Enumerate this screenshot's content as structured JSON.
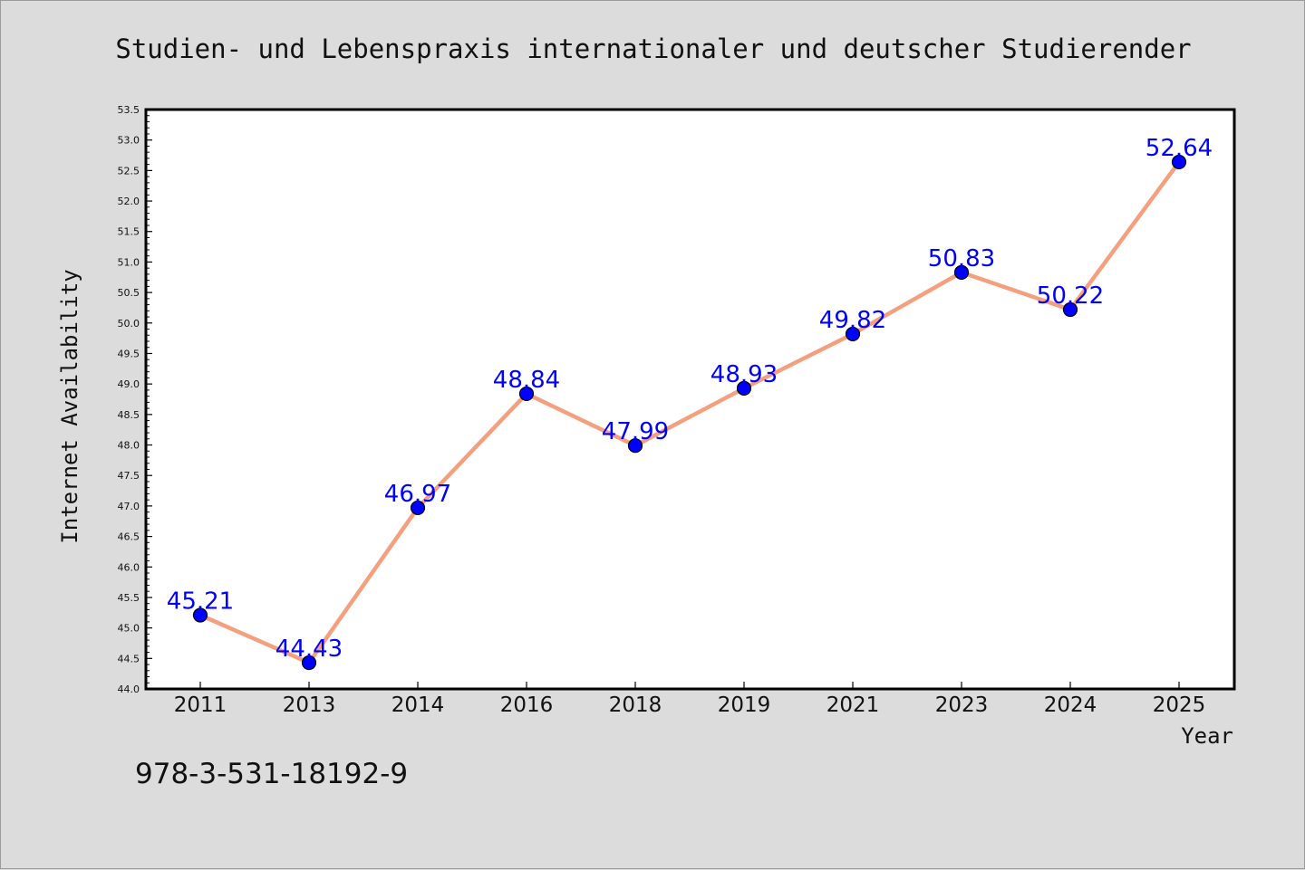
{
  "chart_data": {
    "type": "line",
    "title": "Studien- und Lebenspraxis internationaler und deutscher Studierender",
    "xlabel": "Year",
    "ylabel": "Internet Availability",
    "categories": [
      "2011",
      "2013",
      "2014",
      "2016",
      "2018",
      "2019",
      "2021",
      "2023",
      "2024",
      "2025"
    ],
    "values": [
      45.21,
      44.43,
      46.97,
      48.84,
      47.99,
      48.93,
      49.82,
      50.83,
      50.22,
      52.64
    ],
    "data_labels": [
      "45.21",
      "44.43",
      "46.97",
      "48.84",
      "47.99",
      "48.93",
      "49.82",
      "50.83",
      "50.22",
      "52.64"
    ],
    "ylim": [
      44.0,
      53.5
    ],
    "yticks": [
      "44.0",
      "44.5",
      "45.0",
      "45.5",
      "46.0",
      "46.5",
      "47.0",
      "47.5",
      "48.0",
      "48.5",
      "49.0",
      "49.5",
      "50.0",
      "50.5",
      "51.0",
      "51.5",
      "52.0",
      "52.5",
      "53.0",
      "53.5"
    ],
    "grid": false,
    "line_color": "#f4a07e",
    "marker_color": "#0000ff",
    "label_color": "#0000ff"
  },
  "annotation": "978-3-531-18192-9"
}
